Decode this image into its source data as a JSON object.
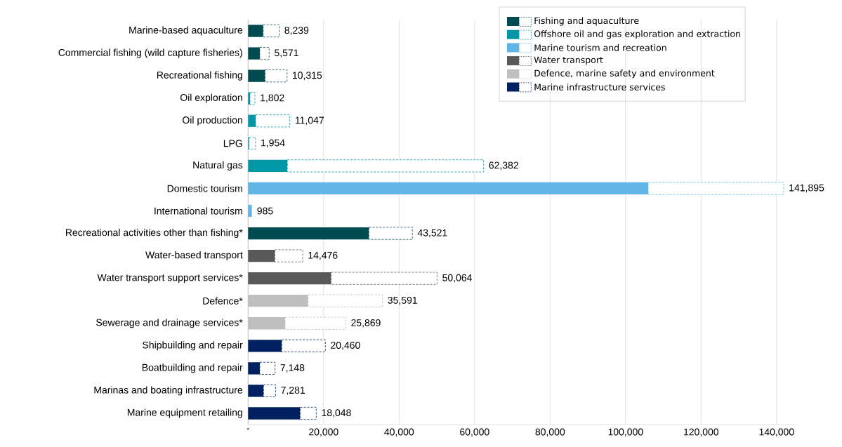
{
  "chart_data": {
    "type": "bar",
    "orientation": "horizontal",
    "stacked": true,
    "categories": [
      "Marine-based aquaculture",
      "Commercial fishing (wild capture fisheries)",
      "Recreational fishing",
      "Oil exploration",
      "Oil production",
      "LPG",
      "Natural gas",
      "Domestic tourism",
      "International tourism",
      "Recreational activities other than fishing*",
      "Water-based transport",
      "Water transport support services*",
      "Defence*",
      "Sewerage and drainage services*",
      "Shipbuilding and repair",
      "Boatbuilding and repair",
      "Marinas and boating infrastructure",
      "Marine equipment retailing"
    ],
    "series": [
      {
        "name": "Fishing and aquaculture",
        "color": "#004b50",
        "values": [
          4000,
          3100,
          4500,
          null,
          null,
          null,
          null,
          null,
          null,
          32000,
          null,
          null,
          null,
          null,
          null,
          null,
          null,
          null
        ]
      },
      {
        "color": "#004b50",
        "line_style": "dashed",
        "values": [
          4239,
          2471,
          5815,
          null,
          null,
          null,
          null,
          null,
          null,
          11521,
          null,
          null,
          null,
          null,
          null,
          null,
          null,
          null
        ]
      },
      {
        "name": "Offshore oil and gas exploration and extraction",
        "color": "#0097a7",
        "values": [
          null,
          null,
          null,
          500,
          2000,
          250,
          10400,
          null,
          null,
          null,
          null,
          null,
          null,
          null,
          null,
          null,
          null,
          null
        ]
      },
      {
        "color": "#0097a7",
        "line_style": "dashed",
        "values": [
          null,
          null,
          null,
          1302,
          9047,
          1704,
          51982,
          null,
          null,
          null,
          null,
          null,
          null,
          null,
          null,
          null,
          null,
          null
        ]
      },
      {
        "name": "Marine tourism and recreation",
        "color": "#62b5e5",
        "values": [
          null,
          null,
          null,
          null,
          null,
          null,
          null,
          106000,
          985,
          null,
          null,
          null,
          null,
          null,
          null,
          null,
          null,
          null
        ]
      },
      {
        "color": "#62b5e5",
        "line_style": "dashed",
        "values": [
          null,
          null,
          null,
          null,
          null,
          null,
          null,
          35895,
          null,
          null,
          null,
          null,
          null,
          null,
          null,
          null,
          null,
          null
        ]
      },
      {
        "name": "Water transport",
        "color": "#595959",
        "values": [
          null,
          null,
          null,
          null,
          null,
          null,
          null,
          null,
          null,
          null,
          7100,
          22000,
          null,
          null,
          null,
          null,
          null,
          null
        ]
      },
      {
        "color": "#595959",
        "line_style": "dashed",
        "values": [
          null,
          null,
          null,
          null,
          null,
          null,
          null,
          null,
          null,
          null,
          7376,
          28064,
          null,
          null,
          null,
          null,
          null,
          null
        ]
      },
      {
        "name": "Defence, marine safety and environment",
        "color": "#bfbfbf",
        "values": [
          null,
          null,
          null,
          null,
          null,
          null,
          null,
          null,
          null,
          null,
          null,
          null,
          15900,
          9800,
          null,
          null,
          null,
          null
        ]
      },
      {
        "color": "#bfbfbf",
        "line_style": "dashed",
        "values": [
          null,
          null,
          null,
          null,
          null,
          null,
          null,
          null,
          null,
          null,
          null,
          null,
          19691,
          16069,
          null,
          null,
          null,
          null
        ]
      },
      {
        "name": "Marine infrastructure services",
        "color": "#002060",
        "values": [
          null,
          null,
          null,
          null,
          null,
          null,
          null,
          null,
          null,
          null,
          null,
          null,
          null,
          null,
          8900,
          3100,
          4100,
          13800
        ]
      },
      {
        "color": "#002060",
        "line_style": "dashed",
        "values": [
          null,
          null,
          null,
          null,
          null,
          null,
          null,
          null,
          null,
          null,
          null,
          null,
          null,
          null,
          11560,
          4048,
          3181,
          4248
        ]
      }
    ],
    "totals": [
      "8,239",
      "5,571",
      "10,315",
      "1,802",
      "11,047",
      "1,954",
      "62,382",
      "141,895",
      "985",
      "43,521",
      "14,476",
      "50,064",
      "35,591",
      "25,869",
      "20,460",
      "7,148",
      "7,281",
      "18,048"
    ],
    "xlim": [
      0,
      145000
    ],
    "xticks": [
      {
        "value": 0,
        "label": "-"
      },
      {
        "value": 20000,
        "label": "20,000"
      },
      {
        "value": 40000,
        "label": "40,000"
      },
      {
        "value": 60000,
        "label": "60,000"
      },
      {
        "value": 80000,
        "label": "80,000"
      },
      {
        "value": 100000,
        "label": "100,000"
      },
      {
        "value": 120000,
        "label": "120,000"
      },
      {
        "value": 140000,
        "label": "140,000"
      }
    ],
    "grid": "x",
    "legend": "top right"
  }
}
